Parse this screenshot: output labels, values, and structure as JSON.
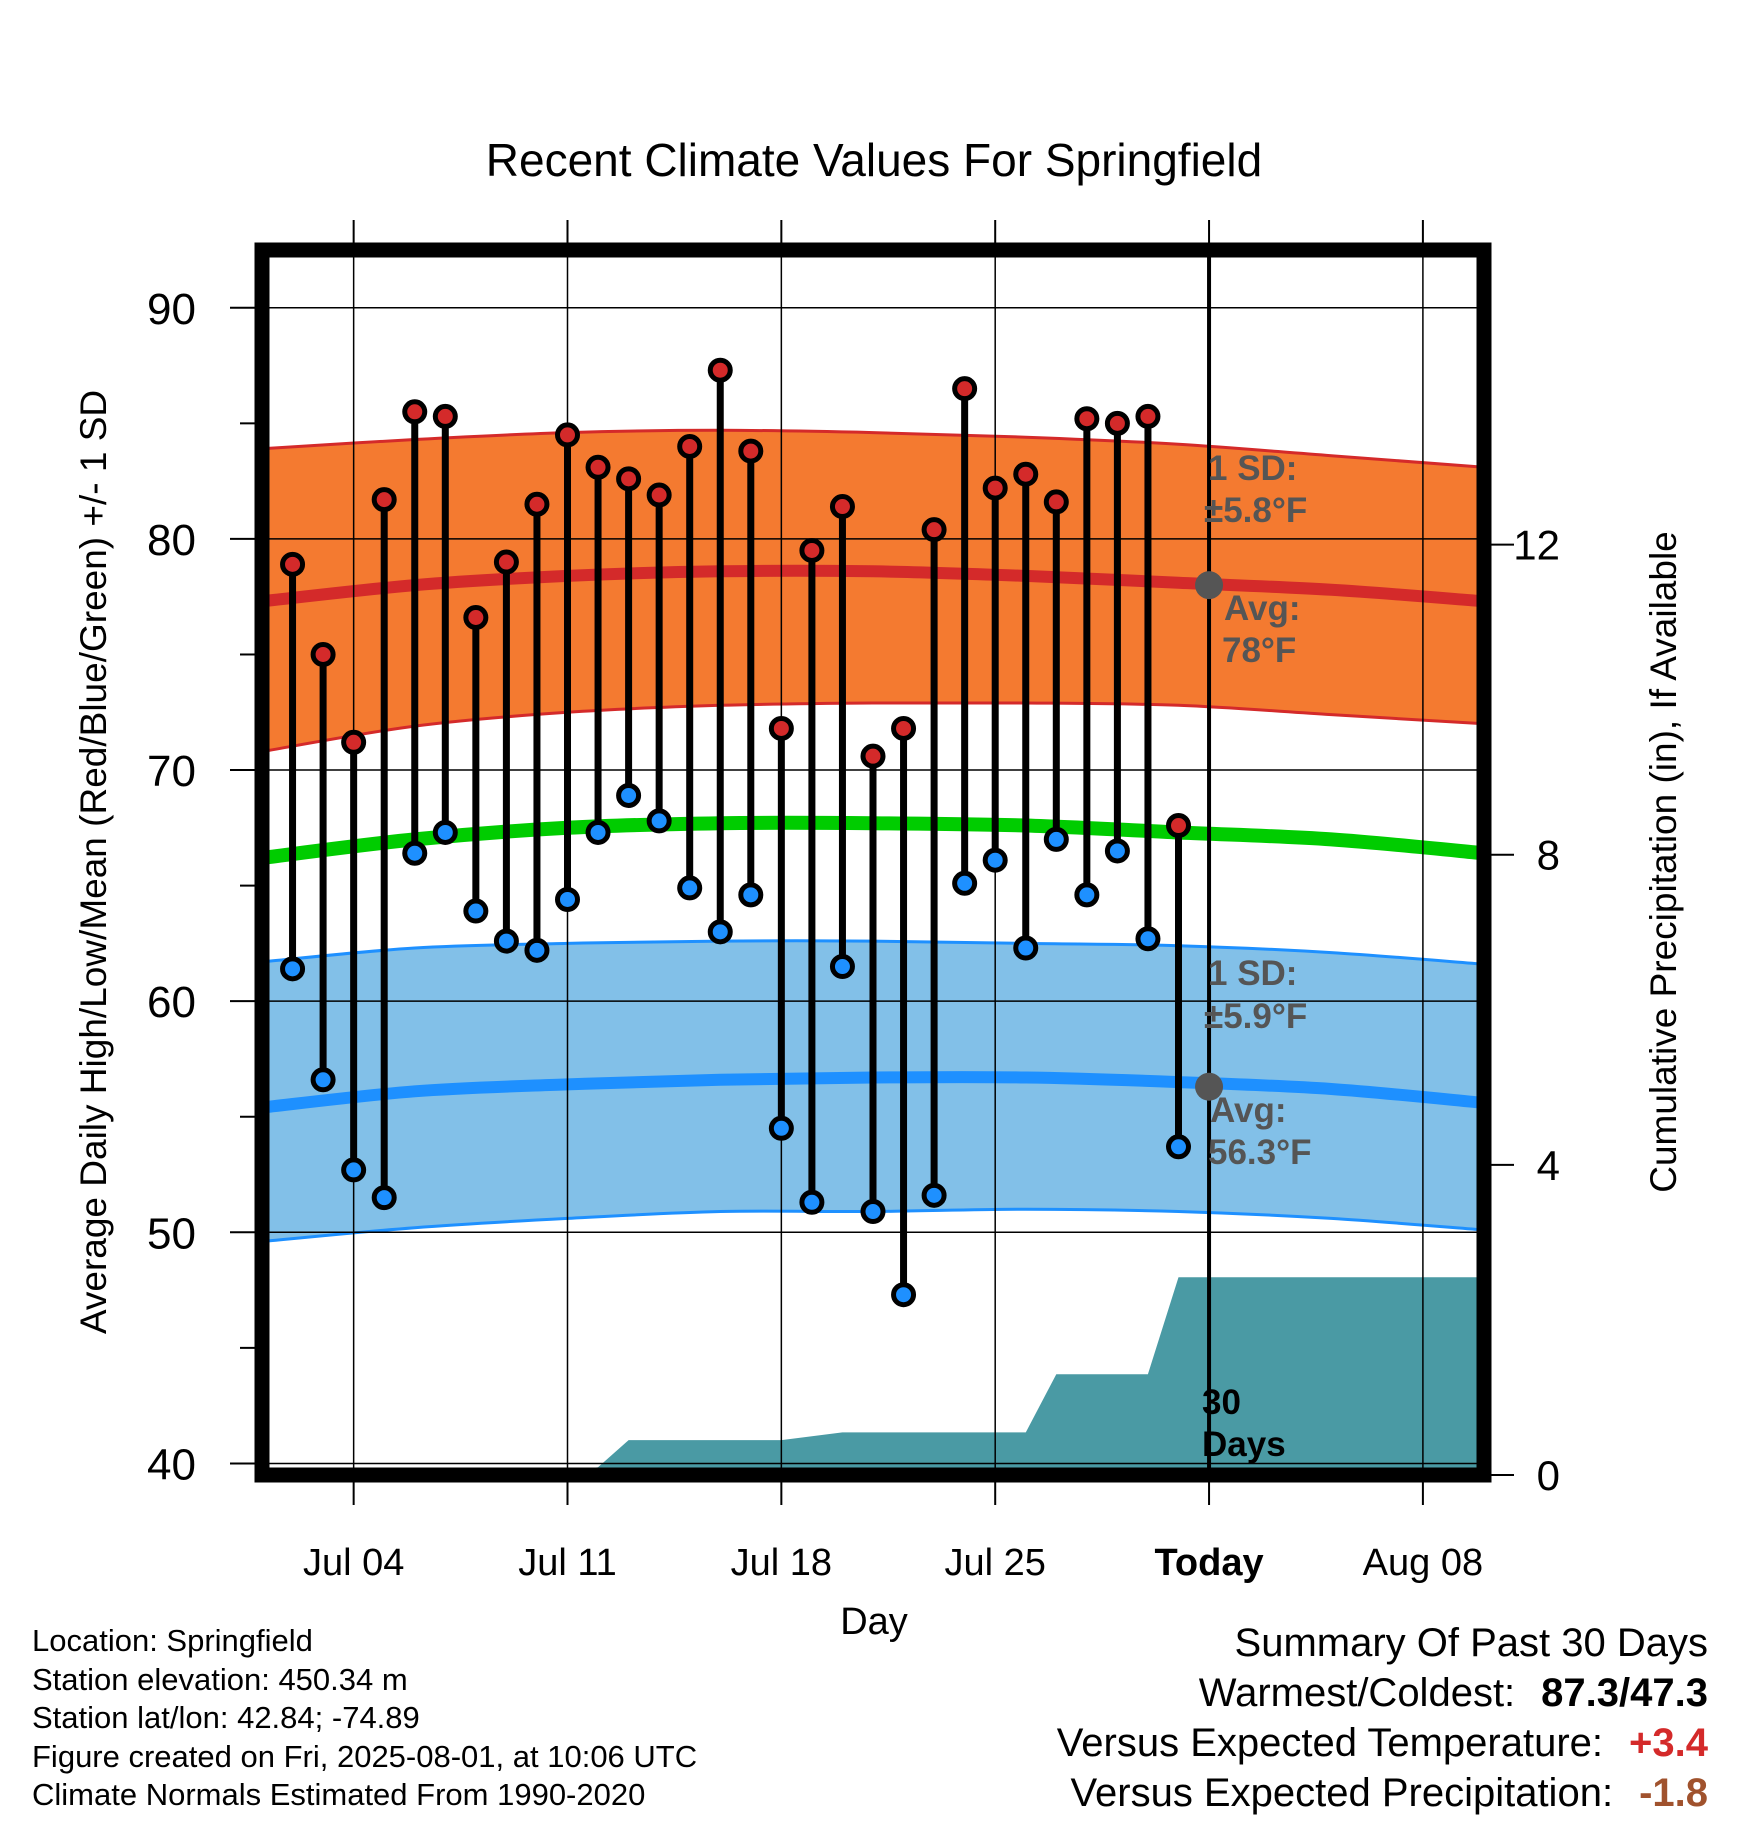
{
  "chart_data": {
    "type": "line",
    "title": "Recent Climate Values For Springfield",
    "xlabel": "Day",
    "ylabel": "Average Daily High/Low/Mean (Red/Blue/Green) +/- 1 SD",
    "y2label": "Cumulative Precipitation (in), If Available",
    "ylim": [
      39.5,
      92.5
    ],
    "y2lim": [
      0,
      15.8
    ],
    "yticks": [
      40,
      50,
      60,
      70,
      80,
      90
    ],
    "y2ticks": [
      0,
      4,
      8,
      12
    ],
    "xlim": [
      "2025-07-01",
      "2025-08-10"
    ],
    "xticks": [
      "Jul 04",
      "Jul 11",
      "Jul 18",
      "Jul 25",
      "Today",
      "Aug 08"
    ],
    "xtick_dates": [
      "2025-07-04",
      "2025-07-11",
      "2025-07-18",
      "2025-07-25",
      "2025-08-01",
      "2025-08-08"
    ],
    "today": "2025-08-01",
    "grid": true,
    "colors": {
      "high": "#d42a2a",
      "low": "#1e90ff",
      "mean": "#00cc00",
      "high_band": "#f47a30",
      "low_band": "#82c0e8",
      "precip": "#4a9aa4",
      "annotation": "#555555",
      "positive": "#d42a2a",
      "precip_deficit": "#a0522d"
    },
    "normals": {
      "dates": [
        "2025-07-01",
        "2025-07-06",
        "2025-07-11",
        "2025-07-16",
        "2025-07-21",
        "2025-07-26",
        "2025-07-31",
        "2025-08-05",
        "2025-08-10"
      ],
      "avg_high": [
        77.3,
        78.0,
        78.4,
        78.6,
        78.6,
        78.4,
        78.1,
        77.8,
        77.3
      ],
      "high_plus_sd": [
        83.9,
        84.3,
        84.6,
        84.7,
        84.6,
        84.4,
        84.1,
        83.6,
        83.1
      ],
      "high_minus_sd": [
        70.8,
        71.9,
        72.5,
        72.8,
        72.9,
        72.9,
        72.8,
        72.4,
        72.0
      ],
      "avg_low": [
        55.4,
        56.1,
        56.4,
        56.6,
        56.7,
        56.7,
        56.5,
        56.2,
        55.6
      ],
      "low_plus_sd": [
        61.7,
        62.3,
        62.5,
        62.6,
        62.6,
        62.5,
        62.4,
        62.1,
        61.6
      ],
      "low_minus_sd": [
        49.6,
        50.2,
        50.6,
        50.9,
        50.9,
        51.0,
        50.9,
        50.6,
        50.1
      ],
      "avg_mean": [
        66.2,
        67.0,
        67.5,
        67.7,
        67.7,
        67.6,
        67.3,
        67.0,
        66.4
      ]
    },
    "daily": {
      "dates": [
        "2025-07-02",
        "2025-07-03",
        "2025-07-04",
        "2025-07-05",
        "2025-07-06",
        "2025-07-07",
        "2025-07-08",
        "2025-07-09",
        "2025-07-10",
        "2025-07-11",
        "2025-07-12",
        "2025-07-13",
        "2025-07-14",
        "2025-07-15",
        "2025-07-16",
        "2025-07-17",
        "2025-07-18",
        "2025-07-19",
        "2025-07-20",
        "2025-07-21",
        "2025-07-22",
        "2025-07-23",
        "2025-07-24",
        "2025-07-25",
        "2025-07-26",
        "2025-07-27",
        "2025-07-28",
        "2025-07-29",
        "2025-07-30",
        "2025-07-31"
      ],
      "high": [
        78.9,
        75.0,
        71.2,
        81.7,
        85.5,
        85.3,
        76.6,
        79.0,
        81.5,
        84.5,
        83.1,
        82.6,
        81.9,
        84.0,
        87.3,
        83.8,
        71.8,
        79.5,
        81.4,
        70.6,
        71.8,
        80.4,
        86.5,
        82.2,
        82.8,
        81.6,
        85.2,
        85.0,
        85.3,
        67.6
      ],
      "low": [
        61.4,
        56.6,
        52.7,
        51.5,
        66.4,
        67.3,
        63.9,
        62.6,
        62.2,
        64.4,
        67.3,
        68.9,
        67.8,
        64.9,
        63.0,
        64.6,
        54.5,
        51.3,
        61.5,
        50.9,
        47.3,
        51.6,
        65.1,
        66.1,
        62.3,
        67.0,
        64.6,
        66.5,
        62.7,
        53.7
      ]
    },
    "precip": {
      "dates": [
        "2025-07-01",
        "2025-07-04",
        "2025-07-08",
        "2025-07-11",
        "2025-07-12",
        "2025-07-13",
        "2025-07-13",
        "2025-07-18",
        "2025-07-20",
        "2025-07-26",
        "2025-07-27",
        "2025-07-30",
        "2025-07-31",
        "2025-08-10"
      ],
      "cumulative": [
        0.0,
        0.0,
        0.05,
        0.05,
        0.1,
        0.45,
        0.45,
        0.45,
        0.55,
        0.55,
        1.3,
        1.3,
        2.55,
        2.55
      ]
    },
    "annotations": {
      "high_sd_label": "1 SD:",
      "high_sd_value": "±5.8°F",
      "high_avg_label": "Avg:",
      "high_avg_value": "78°F",
      "high_avg_marker": 78.0,
      "low_sd_label": "1 SD:",
      "low_sd_value": "±5.9°F",
      "low_avg_label": "Avg:",
      "low_avg_value": "56.3°F",
      "low_avg_marker": 56.3,
      "days_label_1": "30",
      "days_label_2": "Days"
    }
  },
  "footer": {
    "location": "Location: Springfield",
    "elevation": "Station elevation: 450.34 m",
    "latlon": "Station lat/lon: 42.84; -74.89",
    "created": "Figure created on Fri, 2025-08-01, at 10:06 UTC",
    "normals": "Climate Normals Estimated From 1990-2020"
  },
  "summary": {
    "title": "Summary Of Past 30 Days",
    "warmest_coldest_label": "Warmest/Coldest:",
    "warmest_coldest_value": "87.3/47.3",
    "temp_label": "Versus Expected Temperature:",
    "temp_value": "+3.4",
    "precip_label": "Versus Expected Precipitation:",
    "precip_value": "-1.8"
  }
}
